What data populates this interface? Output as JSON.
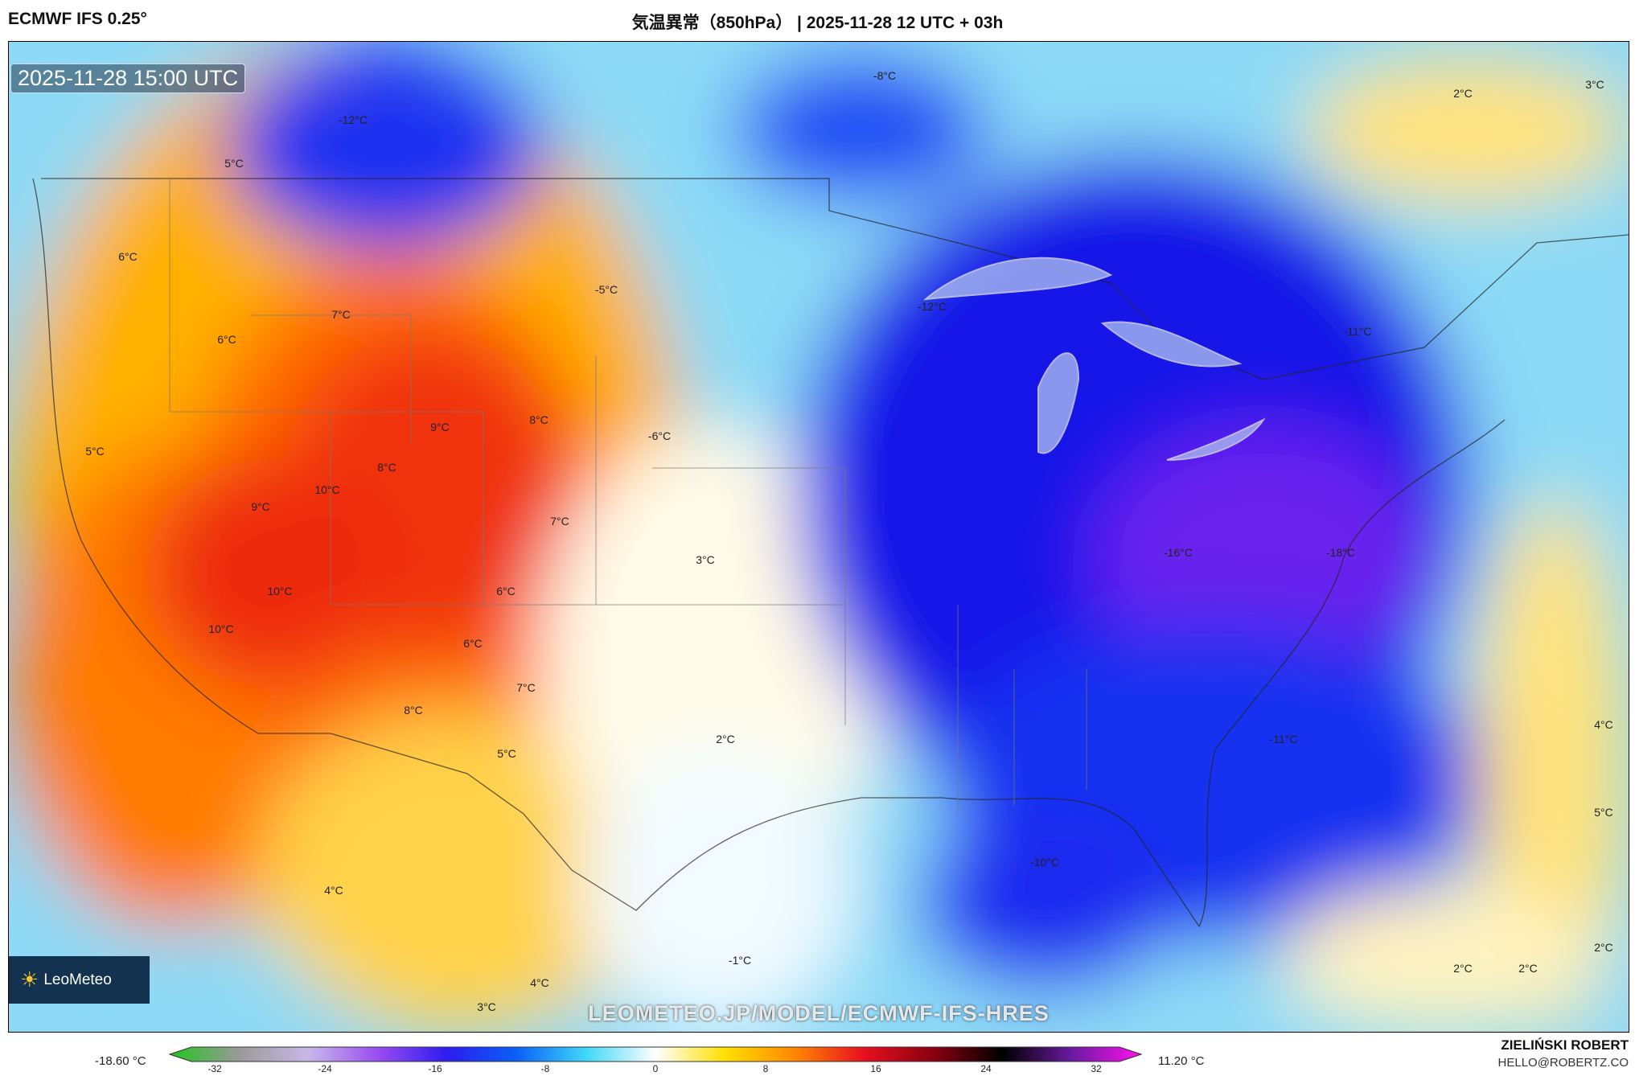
{
  "header": {
    "model": "ECMWF IFS 0.25°",
    "title": "気温異常（850hPa） | 2025-11-28 12 UTC + 03h"
  },
  "map": {
    "valid_time": "2025-11-28 15:00 UTC",
    "logo": "LeoMeteo",
    "watermark": "LEOMETEO.JP/MODEL/ECMWF-IFS-HRES",
    "labels": [
      "-12°C",
      "5°C",
      "-8°C",
      "2°C",
      "3°C",
      "6°C",
      "7°C",
      "6°C",
      "-5°C",
      "-12°C",
      "-11°C",
      "9°C",
      "8°C",
      "-6°C",
      "5°C",
      "8°C",
      "10°C",
      "9°C",
      "7°C",
      "3°C",
      "-16°C",
      "-18°C",
      "10°C",
      "6°C",
      "10°C",
      "6°C",
      "7°C",
      "8°C",
      "5°C",
      "2°C",
      "-11°C",
      "4°C",
      "5°C",
      "-10°C",
      "4°C",
      "-1°C",
      "2°C",
      "2°C",
      "2°C",
      "4°C",
      "3°C"
    ]
  },
  "colorbar": {
    "min_label": "-18.60 °C",
    "max_label": "11.20 °C",
    "ticks": [
      "-32",
      "-24",
      "-16",
      "-8",
      "0",
      "8",
      "16",
      "24",
      "32"
    ],
    "colors": [
      "#22c41e",
      "#9a9a9a",
      "#c8b8e8",
      "#9a4cf0",
      "#2c1cf0",
      "#0a60f8",
      "#40d8f8",
      "#ffffff",
      "#ffe000",
      "#ff8800",
      "#e81020",
      "#8a0010",
      "#000000",
      "#6a1aa0",
      "#ff10f0"
    ]
  },
  "footer": {
    "author": "ZIELIŃSKI ROBERT",
    "email": "HELLO@ROBERTZ.CO"
  }
}
